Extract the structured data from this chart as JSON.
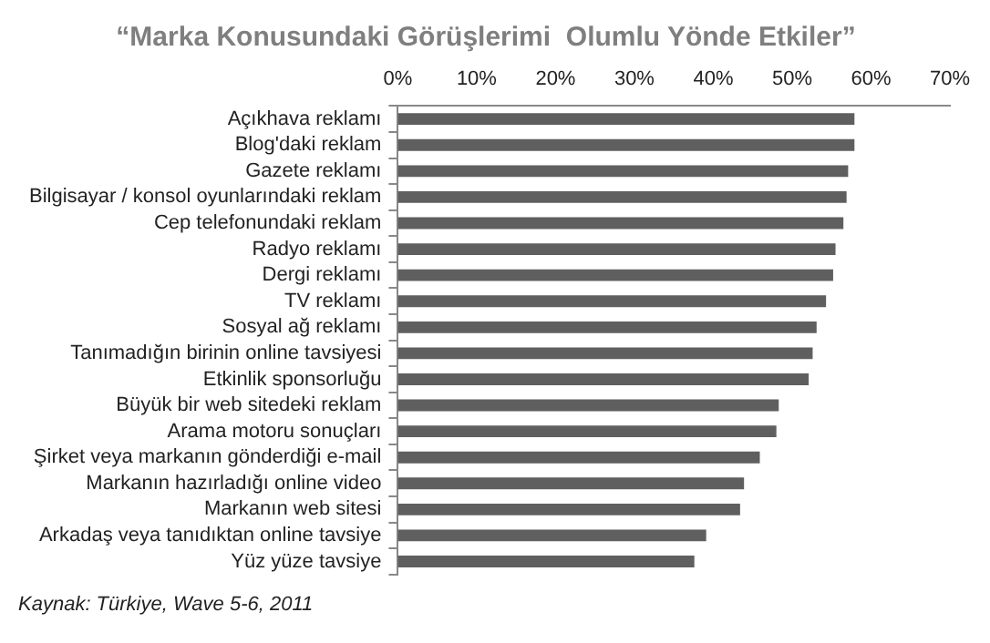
{
  "chart_data": {
    "type": "bar",
    "orientation": "horizontal",
    "title": "“Marka Konusundaki Görüşlerimi  Olumlu Yönde Etkiler”",
    "categories": [
      "Açıkhava reklamı",
      "Blog'daki reklam",
      "Gazete reklamı",
      "Bilgisayar / konsol oyunlarındaki reklam",
      "Cep telefonundaki reklam",
      "Radyo reklamı",
      "Dergi reklamı",
      "TV reklamı",
      "Sosyal ağ reklamı",
      "Tanımadığın birinin online tavsiyesi",
      "Etkinlik sponsorluğu",
      "Büyük bir web sitedeki reklam",
      "Arama motoru sonuçları",
      "Şirket veya markanın gönderdiği e-mail",
      "Markanın hazırladığı online video",
      "Markanın web sitesi",
      "Arkadaş veya tanıdıktan online tavsiye",
      "Yüz yüze tavsiye"
    ],
    "values": [
      57.9,
      57.9,
      57.1,
      56.9,
      56.5,
      55.5,
      55.2,
      54.3,
      53.1,
      52.6,
      52.1,
      48.3,
      48.0,
      45.9,
      43.9,
      43.4,
      39.1,
      37.6
    ],
    "color": "#5f5f5f",
    "xlim": [
      0,
      70
    ],
    "xticks": [
      {
        "value": 0,
        "label": "0%"
      },
      {
        "value": 10,
        "label": "10%"
      },
      {
        "value": 20,
        "label": "20%"
      },
      {
        "value": 30,
        "label": "30%"
      },
      {
        "value": 40,
        "label": "40%"
      },
      {
        "value": 50,
        "label": "50%"
      },
      {
        "value": 60,
        "label": "60%"
      },
      {
        "value": 70,
        "label": "70%"
      }
    ],
    "grid": false,
    "legend": false,
    "annotations": [
      "Kaynak: Türkiye, Wave 5-6, 2011"
    ]
  }
}
